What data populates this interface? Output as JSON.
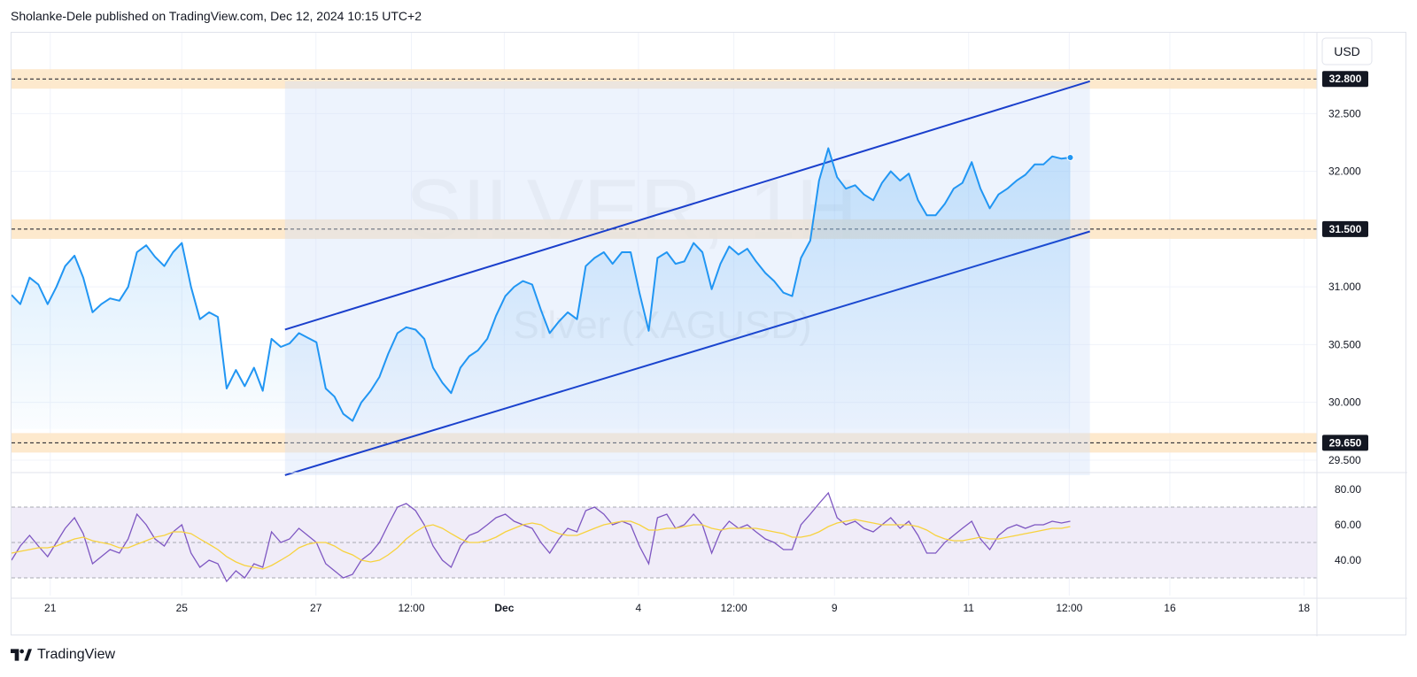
{
  "header": {
    "text": "Sholanke-Dele published on TradingView.com, Dec 12, 2024 10:15 UTC+2"
  },
  "footer": {
    "brand": "TradingView",
    "logo_icon": "tradingview-logo-icon"
  },
  "colors": {
    "price_line": "#2196f3",
    "channel_line": "#1a3fcc",
    "zone_fill": "#fde5c4",
    "rsi_line": "#7e57c2",
    "rsi_ma": "#f7d23e",
    "rsi_band": "#f0ecf8",
    "grid": "#f0f3fa"
  },
  "chart_data": {
    "type": "line",
    "currency_button": "USD",
    "watermark": {
      "symbol": "SILVER, 1H",
      "name": "Silver (XAGUSD)"
    },
    "y_axis": {
      "ticks": [
        29.5,
        30.0,
        30.5,
        31.0,
        31.5,
        32.0,
        32.5
      ],
      "tick_labels": [
        "29.500",
        "30.000",
        "30.500",
        "31.000",
        "31.500",
        "32.000",
        "32.500"
      ],
      "range": [
        29.4,
        33.2
      ]
    },
    "x_axis": {
      "range": [
        0,
        25.3
      ],
      "ticks": [
        {
          "x": 0.75,
          "label": "21",
          "bold": false
        },
        {
          "x": 3.3,
          "label": "25",
          "bold": false
        },
        {
          "x": 5.9,
          "label": "27",
          "bold": false
        },
        {
          "x": 7.75,
          "label": "12:00",
          "bold": false
        },
        {
          "x": 9.55,
          "label": "Dec",
          "bold": true
        },
        {
          "x": 12.15,
          "label": "4",
          "bold": false
        },
        {
          "x": 14.0,
          "label": "12:00",
          "bold": false
        },
        {
          "x": 15.95,
          "label": "9",
          "bold": false
        },
        {
          "x": 18.55,
          "label": "11",
          "bold": false
        },
        {
          "x": 20.5,
          "label": "12:00",
          "bold": false
        },
        {
          "x": 22.45,
          "label": "16",
          "bold": false
        },
        {
          "x": 25.05,
          "label": "18",
          "bold": false
        }
      ]
    },
    "horizontal_levels": [
      {
        "value": 32.8,
        "label": "32.800"
      },
      {
        "value": 31.5,
        "label": "31.500"
      },
      {
        "value": 29.65,
        "label": "29.650"
      }
    ],
    "channel": {
      "upper": {
        "x1": 5.3,
        "y1": 30.63,
        "x2": 20.9,
        "y2": 32.78
      },
      "lower": {
        "x1": 5.3,
        "y1": 29.37,
        "x2": 20.9,
        "y2": 31.48
      },
      "box": {
        "x1": 5.3,
        "x2": 20.9,
        "y1": 29.37,
        "y2": 32.78
      }
    },
    "series": [
      {
        "name": "Silver (XAGUSD)",
        "x": [
          0.0,
          0.17,
          0.35,
          0.52,
          0.7,
          0.87,
          1.04,
          1.22,
          1.39,
          1.57,
          1.74,
          1.91,
          2.09,
          2.26,
          2.43,
          2.61,
          2.78,
          2.96,
          3.13,
          3.3,
          3.48,
          3.65,
          3.83,
          4.0,
          4.17,
          4.35,
          4.52,
          4.7,
          4.87,
          5.04,
          5.22,
          5.39,
          5.57,
          5.74,
          5.91,
          6.09,
          6.26,
          6.43,
          6.61,
          6.78,
          6.96,
          7.13,
          7.3,
          7.48,
          7.65,
          7.83,
          8.0,
          8.17,
          8.35,
          8.52,
          8.7,
          8.87,
          9.04,
          9.22,
          9.39,
          9.57,
          9.74,
          9.91,
          10.09,
          10.26,
          10.43,
          10.61,
          10.78,
          10.96,
          11.13,
          11.3,
          11.48,
          11.65,
          11.83,
          12.0,
          12.17,
          12.35,
          12.52,
          12.7,
          12.87,
          13.04,
          13.22,
          13.39,
          13.57,
          13.74,
          13.91,
          14.09,
          14.26,
          14.43,
          14.61,
          14.78,
          14.96,
          15.13,
          15.3,
          15.48,
          15.65,
          15.83,
          16.0,
          16.17,
          16.35,
          16.52,
          16.7,
          16.87,
          17.04,
          17.22,
          17.39,
          17.57,
          17.74,
          17.91,
          18.09,
          18.26,
          18.43,
          18.61,
          18.78,
          18.96,
          19.13,
          19.3,
          19.48,
          19.65,
          19.83,
          20.0,
          20.17,
          20.35,
          20.52
        ],
        "values": [
          30.93,
          30.85,
          31.08,
          31.02,
          30.85,
          31.0,
          31.18,
          31.27,
          31.08,
          30.78,
          30.85,
          30.9,
          30.88,
          31.0,
          31.3,
          31.36,
          31.26,
          31.18,
          31.3,
          31.38,
          31.0,
          30.72,
          30.78,
          30.74,
          30.12,
          30.28,
          30.14,
          30.3,
          30.1,
          30.55,
          30.48,
          30.51,
          30.6,
          30.56,
          30.52,
          30.12,
          30.05,
          29.9,
          29.84,
          30.0,
          30.1,
          30.22,
          30.42,
          30.6,
          30.65,
          30.63,
          30.55,
          30.3,
          30.17,
          30.08,
          30.3,
          30.4,
          30.45,
          30.55,
          30.75,
          30.92,
          31.0,
          31.05,
          31.02,
          30.8,
          30.6,
          30.7,
          30.78,
          30.72,
          31.18,
          31.25,
          31.3,
          31.2,
          31.3,
          31.3,
          30.95,
          30.62,
          31.25,
          31.3,
          31.2,
          31.22,
          31.38,
          31.3,
          30.98,
          31.2,
          31.35,
          31.28,
          31.33,
          31.22,
          31.12,
          31.05,
          30.95,
          30.92,
          31.25,
          31.4,
          31.92,
          32.2,
          31.95,
          31.85,
          31.88,
          31.8,
          31.75,
          31.9,
          32.0,
          31.92,
          31.98,
          31.75,
          31.62,
          31.62,
          31.72,
          31.85,
          31.9,
          32.08,
          31.85,
          31.68,
          31.8,
          31.85,
          31.92,
          31.97,
          32.06,
          32.06,
          32.13,
          32.11,
          32.12
        ]
      },
      {
        "name": "RSI",
        "range": [
          20,
          88
        ],
        "levels": [
          70,
          50,
          30
        ],
        "tick_labels": [
          "80.00",
          "60.00",
          "40.00"
        ],
        "ticks": [
          80,
          60,
          40
        ],
        "x": [
          0.0,
          0.17,
          0.35,
          0.52,
          0.7,
          0.87,
          1.04,
          1.22,
          1.39,
          1.57,
          1.74,
          1.91,
          2.09,
          2.26,
          2.43,
          2.61,
          2.78,
          2.96,
          3.13,
          3.3,
          3.48,
          3.65,
          3.83,
          4.0,
          4.17,
          4.35,
          4.52,
          4.7,
          4.87,
          5.04,
          5.22,
          5.39,
          5.57,
          5.74,
          5.91,
          6.09,
          6.26,
          6.43,
          6.61,
          6.78,
          6.96,
          7.13,
          7.3,
          7.48,
          7.65,
          7.83,
          8.0,
          8.17,
          8.35,
          8.52,
          8.7,
          8.87,
          9.04,
          9.22,
          9.39,
          9.57,
          9.74,
          9.91,
          10.09,
          10.26,
          10.43,
          10.61,
          10.78,
          10.96,
          11.13,
          11.3,
          11.48,
          11.65,
          11.83,
          12.0,
          12.17,
          12.35,
          12.52,
          12.7,
          12.87,
          13.04,
          13.22,
          13.39,
          13.57,
          13.74,
          13.91,
          14.09,
          14.26,
          14.43,
          14.61,
          14.78,
          14.96,
          15.13,
          15.3,
          15.48,
          15.65,
          15.83,
          16.0,
          16.17,
          16.35,
          16.52,
          16.7,
          16.87,
          17.04,
          17.22,
          17.39,
          17.57,
          17.74,
          17.91,
          18.09,
          18.26,
          18.43,
          18.61,
          18.78,
          18.96,
          19.13,
          19.3,
          19.48,
          19.65,
          19.83,
          20.0,
          20.17,
          20.35,
          20.52
        ],
        "values": [
          40,
          48,
          54,
          48,
          42,
          50,
          58,
          64,
          55,
          38,
          42,
          46,
          44,
          52,
          66,
          60,
          52,
          48,
          56,
          60,
          44,
          36,
          40,
          38,
          28,
          34,
          30,
          38,
          36,
          56,
          50,
          52,
          58,
          54,
          50,
          38,
          34,
          30,
          32,
          40,
          44,
          50,
          60,
          70,
          72,
          68,
          60,
          48,
          40,
          36,
          48,
          54,
          56,
          60,
          64,
          66,
          62,
          60,
          58,
          50,
          44,
          52,
          58,
          56,
          68,
          70,
          66,
          60,
          62,
          60,
          48,
          38,
          64,
          66,
          58,
          60,
          66,
          60,
          44,
          56,
          62,
          58,
          60,
          56,
          52,
          50,
          46,
          46,
          60,
          66,
          72,
          78,
          64,
          60,
          62,
          58,
          56,
          60,
          64,
          58,
          62,
          54,
          44,
          44,
          50,
          54,
          58,
          62,
          52,
          46,
          54,
          58,
          60,
          58,
          60,
          60,
          62,
          61,
          62
        ],
        "ma": [
          44,
          45,
          46,
          47,
          47,
          48,
          50,
          52,
          53,
          51,
          50,
          49,
          47,
          47,
          49,
          51,
          53,
          54,
          56,
          56,
          55,
          52,
          49,
          46,
          42,
          39,
          37,
          36,
          35,
          37,
          40,
          43,
          47,
          49,
          50,
          50,
          48,
          45,
          43,
          40,
          39,
          40,
          43,
          47,
          52,
          56,
          59,
          60,
          58,
          55,
          52,
          50,
          50,
          51,
          53,
          56,
          58,
          60,
          61,
          60,
          57,
          55,
          54,
          54,
          56,
          58,
          60,
          61,
          62,
          62,
          60,
          57,
          57,
          58,
          58,
          59,
          60,
          60,
          58,
          57,
          58,
          58,
          58,
          58,
          57,
          56,
          55,
          53,
          53,
          54,
          56,
          59,
          61,
          62,
          63,
          62,
          61,
          60,
          60,
          60,
          60,
          59,
          57,
          54,
          52,
          51,
          51,
          52,
          53,
          52,
          52,
          53,
          54,
          55,
          56,
          57,
          58,
          58,
          59
        ]
      }
    ]
  }
}
